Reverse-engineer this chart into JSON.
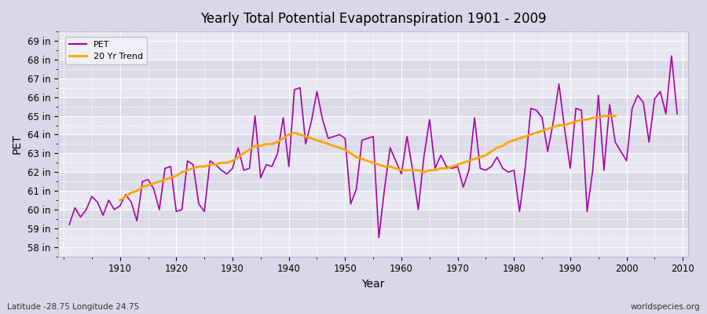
{
  "title": "Yearly Total Potential Evapotranspiration 1901 - 2009",
  "xlabel": "Year",
  "ylabel": "PET",
  "subtitle": "Latitude -28.75 Longitude 24.75",
  "watermark": "worldspecies.org",
  "pet_color": "#AA00AA",
  "trend_color": "#FFA500",
  "background_color": "#E0E0E8",
  "plot_bg_color": "#E8E8F0",
  "ylim": [
    57.5,
    69.5
  ],
  "yticks": [
    58,
    59,
    60,
    61,
    62,
    63,
    64,
    65,
    66,
    67,
    68,
    69
  ],
  "xlim": [
    1899,
    2011
  ],
  "years": [
    1901,
    1902,
    1903,
    1904,
    1905,
    1906,
    1907,
    1908,
    1909,
    1910,
    1911,
    1912,
    1913,
    1914,
    1915,
    1916,
    1917,
    1918,
    1919,
    1920,
    1921,
    1922,
    1923,
    1924,
    1925,
    1926,
    1927,
    1928,
    1929,
    1930,
    1931,
    1932,
    1933,
    1934,
    1935,
    1936,
    1937,
    1938,
    1939,
    1940,
    1941,
    1942,
    1943,
    1944,
    1945,
    1946,
    1947,
    1948,
    1949,
    1950,
    1951,
    1952,
    1953,
    1954,
    1955,
    1956,
    1957,
    1958,
    1959,
    1960,
    1961,
    1962,
    1963,
    1964,
    1965,
    1966,
    1967,
    1968,
    1969,
    1970,
    1971,
    1972,
    1973,
    1974,
    1975,
    1976,
    1977,
    1978,
    1979,
    1980,
    1981,
    1982,
    1983,
    1984,
    1985,
    1986,
    1987,
    1988,
    1989,
    1990,
    1991,
    1992,
    1993,
    1994,
    1995,
    1996,
    1997,
    1998,
    1999,
    2000,
    2001,
    2002,
    2003,
    2004,
    2005,
    2006,
    2007,
    2008,
    2009
  ],
  "pet_values": [
    59.2,
    60.1,
    59.6,
    60.0,
    60.7,
    60.4,
    59.7,
    60.5,
    60.0,
    60.2,
    60.8,
    60.4,
    59.4,
    61.5,
    61.6,
    61.1,
    60.0,
    62.2,
    62.3,
    59.9,
    60.0,
    62.6,
    62.4,
    60.3,
    59.9,
    62.6,
    62.4,
    62.1,
    61.9,
    62.2,
    63.3,
    62.1,
    62.2,
    65.0,
    61.7,
    62.4,
    62.3,
    63.0,
    64.9,
    62.3,
    66.4,
    66.5,
    63.5,
    64.7,
    66.3,
    64.8,
    63.8,
    63.9,
    64.0,
    63.8,
    60.3,
    61.1,
    63.7,
    63.8,
    63.9,
    58.5,
    61.1,
    63.3,
    62.6,
    61.9,
    63.9,
    62.1,
    60.0,
    62.8,
    64.8,
    62.2,
    62.9,
    62.3,
    62.2,
    62.3,
    61.2,
    62.1,
    64.9,
    62.2,
    62.1,
    62.3,
    62.8,
    62.2,
    62.0,
    62.1,
    59.9,
    62.2,
    65.4,
    65.3,
    64.9,
    63.1,
    64.7,
    66.7,
    64.3,
    62.2,
    65.4,
    65.3,
    59.9,
    62.1,
    66.1,
    62.1,
    65.6,
    63.6,
    63.1,
    62.6,
    65.4,
    66.1,
    65.7,
    63.6,
    65.9,
    66.3,
    65.1,
    68.2,
    65.1
  ],
  "trend_values": [
    null,
    null,
    null,
    null,
    null,
    null,
    null,
    null,
    null,
    60.5,
    60.7,
    60.9,
    61.0,
    61.2,
    61.3,
    61.4,
    61.5,
    61.6,
    61.7,
    61.8,
    62.0,
    62.1,
    62.2,
    62.3,
    62.3,
    62.4,
    62.4,
    62.5,
    62.5,
    62.6,
    62.8,
    63.0,
    63.2,
    63.4,
    63.4,
    63.5,
    63.5,
    63.6,
    63.8,
    64.0,
    64.1,
    64.0,
    63.9,
    63.8,
    63.7,
    63.6,
    63.5,
    63.4,
    63.3,
    63.2,
    63.0,
    62.8,
    62.7,
    62.6,
    62.5,
    62.4,
    62.3,
    62.3,
    62.2,
    62.1,
    62.1,
    62.1,
    62.1,
    62.0,
    62.1,
    62.1,
    62.2,
    62.2,
    62.3,
    62.4,
    62.5,
    62.6,
    62.7,
    62.8,
    62.9,
    63.1,
    63.3,
    63.4,
    63.6,
    63.7,
    63.8,
    63.9,
    64.0,
    64.1,
    64.2,
    64.3,
    64.4,
    64.5,
    64.5,
    64.6,
    64.7,
    64.8,
    64.8,
    64.9,
    64.9,
    65.0,
    65.0,
    65.0,
    null,
    null,
    null,
    null,
    null,
    null,
    null,
    null,
    null,
    null,
    null
  ]
}
